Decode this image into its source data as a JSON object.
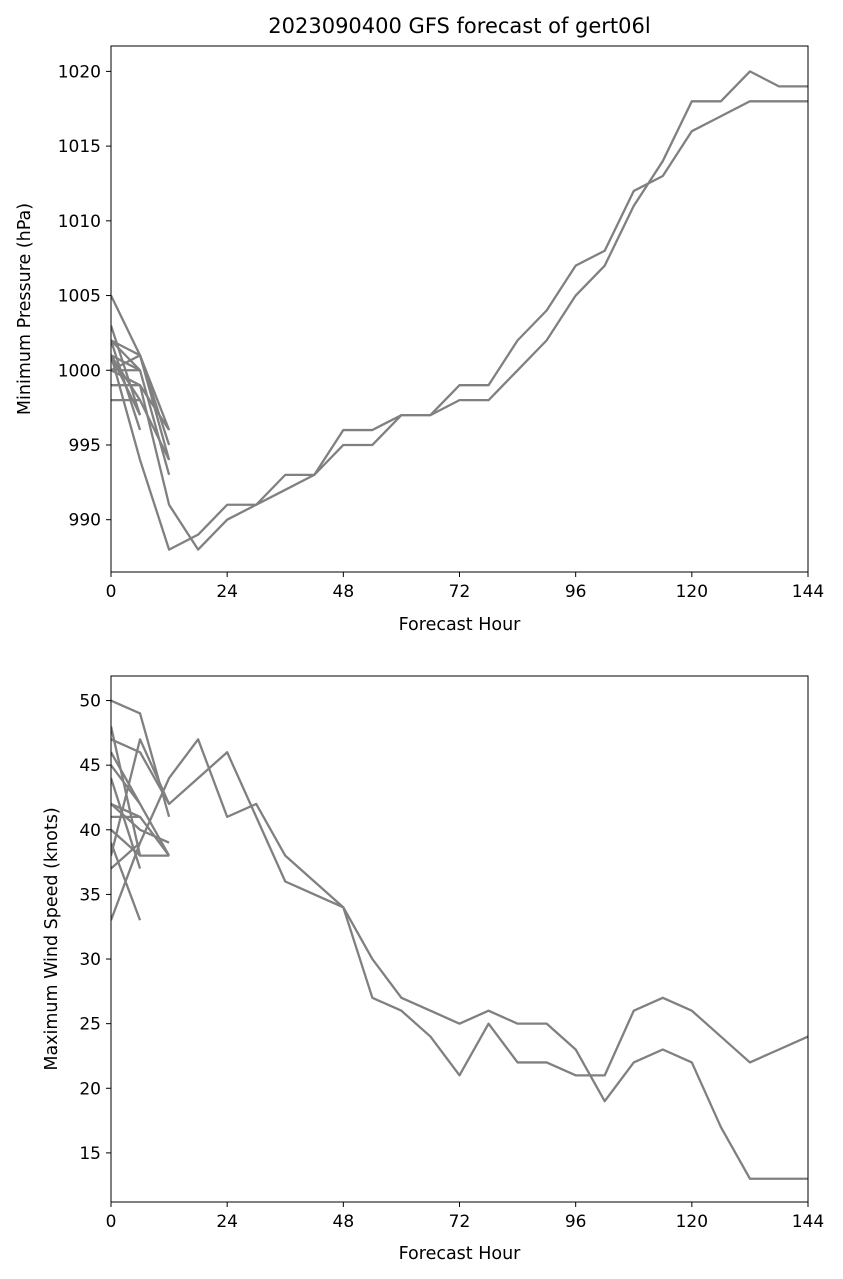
{
  "figure": {
    "title": "2023090400 GFS forecast of gert06l",
    "line_color": "#808080"
  },
  "chart_data": [
    {
      "type": "line",
      "title": "2023090400 GFS forecast of gert06l",
      "xlabel": "Forecast Hour",
      "ylabel": "Minimum Pressure (hPa)",
      "xlim": [
        0,
        144
      ],
      "ylim": [
        986.5,
        1021.7
      ],
      "xticks": [
        0,
        24,
        48,
        72,
        96,
        120,
        144
      ],
      "yticks": [
        990,
        995,
        1000,
        1005,
        1010,
        1015,
        1020
      ],
      "grid": false,
      "series": [
        {
          "x": [
            0,
            6,
            12,
            18,
            24,
            30,
            36,
            42,
            48,
            54,
            60,
            66,
            72,
            78,
            84,
            90,
            96,
            102,
            108,
            114,
            120,
            126,
            132,
            138,
            144
          ],
          "values": [
            1001,
            994,
            988,
            989,
            991,
            991,
            993,
            993,
            996,
            996,
            997,
            997,
            999,
            999,
            1002,
            1004,
            1007,
            1008,
            1012,
            1013,
            1016,
            1017,
            1018,
            1018,
            1018
          ]
        },
        {
          "x": [
            0,
            6,
            12,
            18,
            24,
            30,
            36,
            42,
            48,
            54,
            60,
            66,
            72,
            78,
            84,
            90,
            96,
            102,
            108,
            114,
            120,
            126,
            132,
            138,
            144
          ],
          "values": [
            1000,
            999,
            991,
            988,
            990,
            991,
            992,
            993,
            995,
            995,
            997,
            997,
            998,
            998,
            1000,
            1002,
            1005,
            1007,
            1011,
            1014,
            1018,
            1018,
            1020,
            1019,
            1019
          ]
        },
        {
          "x": [
            0,
            6,
            12
          ],
          "values": [
            1005,
            1001,
            996
          ]
        },
        {
          "x": [
            0,
            6,
            12
          ],
          "values": [
            1002,
            1001,
            994
          ]
        },
        {
          "x": [
            0,
            6,
            12
          ],
          "values": [
            1001,
            1000,
            993
          ]
        },
        {
          "x": [
            0,
            6,
            12
          ],
          "values": [
            1000,
            1001,
            995
          ]
        },
        {
          "x": [
            0,
            6,
            12
          ],
          "values": [
            999,
            999,
            996
          ]
        },
        {
          "x": [
            0,
            6,
            12
          ],
          "values": [
            998,
            998,
            994
          ]
        },
        {
          "x": [
            0,
            6
          ],
          "values": [
            1003,
            997
          ]
        },
        {
          "x": [
            0,
            6
          ],
          "values": [
            1002,
            996
          ]
        },
        {
          "x": [
            0,
            6
          ],
          "values": [
            1001,
            998
          ]
        },
        {
          "x": [
            0,
            6
          ],
          "values": [
            1000,
            1000
          ]
        },
        {
          "x": [
            0,
            6
          ],
          "values": [
            1002,
            1000
          ]
        },
        {
          "x": [
            0,
            6
          ],
          "values": [
            1001,
            997
          ]
        }
      ]
    },
    {
      "type": "line",
      "title": "",
      "xlabel": "Forecast Hour",
      "ylabel": "Maximum Wind Speed (knots)",
      "xlim": [
        0,
        144
      ],
      "ylim": [
        11.2,
        51.9
      ],
      "xticks": [
        0,
        24,
        48,
        72,
        96,
        120,
        144
      ],
      "yticks": [
        15,
        20,
        25,
        30,
        35,
        40,
        45,
        50
      ],
      "grid": false,
      "series": [
        {
          "x": [
            0,
            6,
            12,
            18,
            24,
            30,
            36,
            42,
            48,
            54,
            60,
            66,
            72,
            78,
            84,
            90,
            96,
            102,
            108,
            114,
            120,
            126,
            132,
            138,
            144
          ],
          "values": [
            38,
            47,
            42,
            44,
            46,
            41,
            36,
            35,
            34,
            30,
            27,
            26,
            25,
            26,
            25,
            25,
            23,
            19,
            22,
            23,
            22,
            17,
            13,
            13,
            13
          ]
        },
        {
          "x": [
            0,
            6,
            12,
            18,
            24,
            30,
            36,
            42,
            48,
            54,
            60,
            66,
            72,
            78,
            84,
            90,
            96,
            102,
            108,
            114,
            120,
            126,
            132,
            138,
            144
          ],
          "values": [
            33,
            39,
            44,
            47,
            41,
            42,
            38,
            36,
            34,
            27,
            26,
            24,
            21,
            25,
            22,
            22,
            21,
            21,
            26,
            27,
            26,
            24,
            22,
            23,
            24
          ]
        },
        {
          "x": [
            0,
            6,
            12
          ],
          "values": [
            50,
            49,
            41
          ]
        },
        {
          "x": [
            0,
            6,
            12
          ],
          "values": [
            47,
            46,
            42
          ]
        },
        {
          "x": [
            0,
            6,
            12
          ],
          "values": [
            45,
            42,
            38
          ]
        },
        {
          "x": [
            0,
            6,
            12
          ],
          "values": [
            42,
            40,
            39
          ]
        },
        {
          "x": [
            0,
            6,
            12
          ],
          "values": [
            41,
            41,
            38
          ]
        },
        {
          "x": [
            0,
            6,
            12
          ],
          "values": [
            40,
            38,
            38
          ]
        },
        {
          "x": [
            0,
            6
          ],
          "values": [
            48,
            38
          ]
        },
        {
          "x": [
            0,
            6
          ],
          "values": [
            46,
            42
          ]
        },
        {
          "x": [
            0,
            6
          ],
          "values": [
            44,
            37
          ]
        },
        {
          "x": [
            0,
            6
          ],
          "values": [
            42,
            41
          ]
        },
        {
          "x": [
            0,
            6
          ],
          "values": [
            39,
            33
          ]
        },
        {
          "x": [
            0,
            6
          ],
          "values": [
            37,
            39
          ]
        }
      ]
    }
  ]
}
